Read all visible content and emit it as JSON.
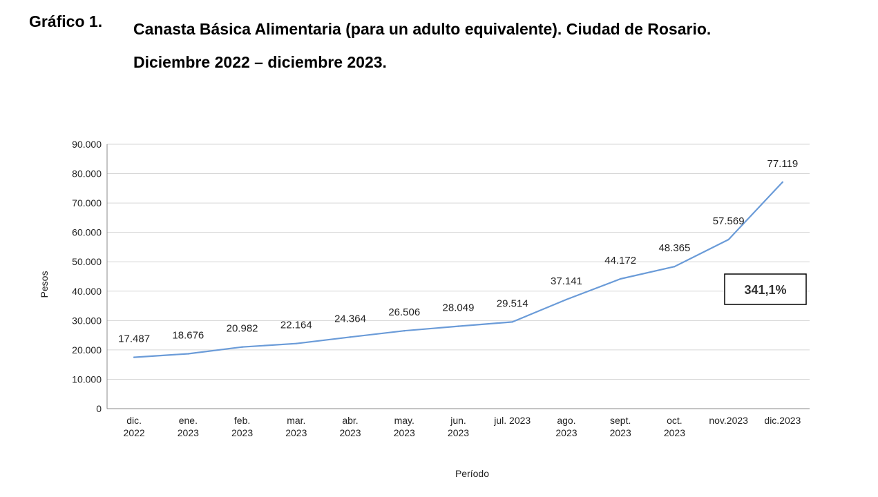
{
  "figure": {
    "label": "Gráfico 1.",
    "title_line1": "Canasta Básica Alimentaria (para un adulto equivalente). Ciudad de Rosario.",
    "title_line2": "Diciembre 2022 –  diciembre 2023."
  },
  "chart_data": {
    "type": "line",
    "title": "",
    "xlabel": "Período",
    "ylabel": "Pesos",
    "ylim": [
      0,
      90000
    ],
    "yticks": [
      0,
      10000,
      20000,
      30000,
      40000,
      50000,
      60000,
      70000,
      80000,
      90000
    ],
    "ytick_labels": [
      "0",
      "10.000",
      "20.000",
      "30.000",
      "40.000",
      "50.000",
      "60.000",
      "70.000",
      "80.000",
      "90.000"
    ],
    "grid": true,
    "categories": [
      [
        "dic.",
        "2022"
      ],
      [
        "ene.",
        "2023"
      ],
      [
        "feb.",
        "2023"
      ],
      [
        "mar.",
        "2023"
      ],
      [
        "abr.",
        "2023"
      ],
      [
        "may.",
        "2023"
      ],
      [
        "jun.",
        "2023"
      ],
      [
        "jul. 2023"
      ],
      [
        "ago.",
        "2023"
      ],
      [
        "sept.",
        "2023"
      ],
      [
        "oct.",
        "2023"
      ],
      [
        "nov.2023"
      ],
      [
        "dic.2023"
      ]
    ],
    "series": [
      {
        "values": [
          17487,
          18676,
          20982,
          22164,
          24364,
          26506,
          28049,
          29514,
          37141,
          44172,
          48365,
          57569,
          77119
        ],
        "labels": [
          "17.487",
          "18.676",
          "20.982",
          "22.164",
          "24.364",
          "26.506",
          "28.049",
          "29.514",
          "37.141",
          "44.172",
          "48.365",
          "57.569",
          "77.119"
        ],
        "color": "#6a9bd8"
      }
    ],
    "annotation": {
      "text": "341,1%"
    }
  }
}
